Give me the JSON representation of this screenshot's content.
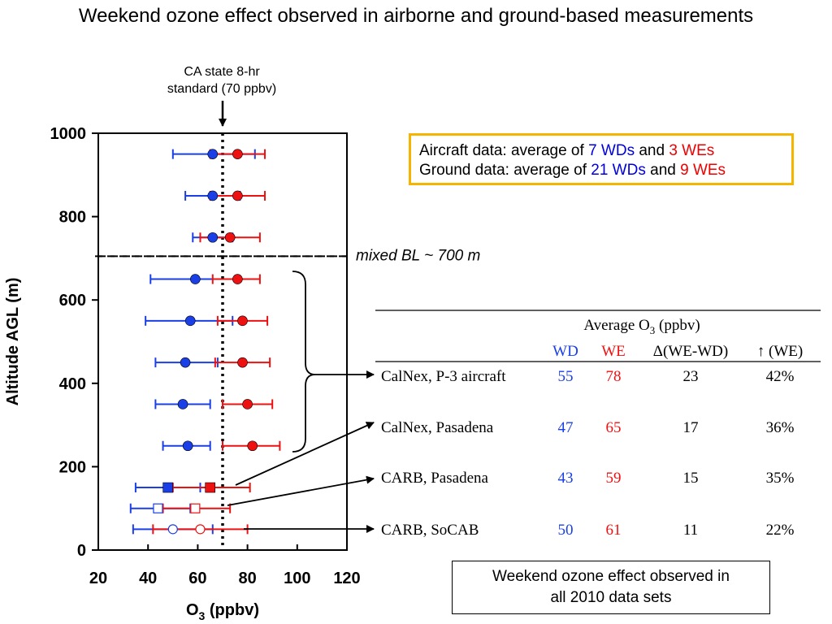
{
  "title": "Weekend ozone effect observed in airborne and ground-based measurements",
  "standard_note": [
    "CA state 8-hr",
    "standard (70 ppbv)"
  ],
  "mixed_bl_label": "mixed BL ~ 700 m",
  "aircraft_box": {
    "line1_prefix": "Aircraft data: average of ",
    "line1_wd": "7 WDs",
    "line1_and": " and ",
    "line1_we": "3 WEs",
    "line2_prefix": "Ground data: average of ",
    "line2_wd": "21 WDs",
    "line2_and": " and ",
    "line2_we": "9 WEs"
  },
  "bottom_box": [
    "Weekend ozone effect observed in",
    "all 2010 data sets"
  ],
  "table": {
    "group_header": "Average O",
    "group_header_sub": "3",
    "group_header_unit": " (ppbv)",
    "columns": [
      "WD",
      "WE",
      "Δ(WE-WD)",
      "↑ (WE)"
    ],
    "rows": [
      {
        "label": "CalNex, P-3 aircraft",
        "wd": "55",
        "we": "78",
        "delta": "23",
        "pct": "42%"
      },
      {
        "label": "CalNex, Pasadena",
        "wd": "47",
        "we": "65",
        "delta": "17",
        "pct": "36%"
      },
      {
        "label": "CARB, Pasadena",
        "wd": "43",
        "we": "59",
        "delta": "15",
        "pct": "35%"
      },
      {
        "label": "CARB, SoCAB",
        "wd": "50",
        "we": "61",
        "delta": "11",
        "pct": "22%"
      }
    ]
  },
  "chart_data": {
    "type": "scatter",
    "xlabel": "O",
    "xlabel_sub": "3",
    "xlabel_unit": " (ppbv)",
    "ylabel": "Altitude AGL (m)",
    "xlim": [
      20,
      120
    ],
    "ylim": [
      0,
      1000
    ],
    "xticks": [
      20,
      40,
      60,
      80,
      100,
      120
    ],
    "yticks": [
      0,
      200,
      400,
      600,
      800,
      1000
    ],
    "standard_x": 70,
    "mixed_bl_y": 705,
    "colors": {
      "wd": "#1a3fe6",
      "we": "#ee1111"
    },
    "aircraft_profile": [
      {
        "alt": 950,
        "wd": 66,
        "wd_lo": 50,
        "wd_hi": 83,
        "we": 76,
        "we_lo": 65,
        "we_hi": 87
      },
      {
        "alt": 850,
        "wd": 66,
        "wd_lo": 55,
        "wd_hi": 77,
        "we": 76,
        "we_lo": 65,
        "we_hi": 87
      },
      {
        "alt": 750,
        "wd": 66,
        "wd_lo": 58,
        "wd_hi": 74,
        "we": 73,
        "we_lo": 61,
        "we_hi": 85
      },
      {
        "alt": 650,
        "wd": 59,
        "wd_lo": 41,
        "wd_hi": 76,
        "we": 76,
        "we_lo": 66,
        "we_hi": 85
      },
      {
        "alt": 550,
        "wd": 57,
        "wd_lo": 39,
        "wd_hi": 74,
        "we": 78,
        "we_lo": 68,
        "we_hi": 88
      },
      {
        "alt": 450,
        "wd": 55,
        "wd_lo": 43,
        "wd_hi": 68,
        "we": 78,
        "we_lo": 67,
        "we_hi": 89
      },
      {
        "alt": 350,
        "wd": 54,
        "wd_lo": 43,
        "wd_hi": 65,
        "we": 80,
        "we_lo": 70,
        "we_hi": 90
      },
      {
        "alt": 250,
        "wd": 56,
        "wd_lo": 46,
        "wd_hi": 65,
        "we": 82,
        "we_lo": 70,
        "we_hi": 93
      }
    ],
    "ground_sites": [
      {
        "name": "CalNex, Pasadena",
        "alt": 150,
        "marker": "square-filled",
        "wd": 48,
        "wd_lo": 35,
        "wd_hi": 61,
        "we": 65,
        "we_lo": 50,
        "we_hi": 81
      },
      {
        "name": "CARB, Pasadena",
        "alt": 100,
        "marker": "square-open",
        "wd": 44,
        "wd_lo": 33,
        "wd_hi": 57,
        "we": 59,
        "we_lo": 46,
        "we_hi": 73
      },
      {
        "name": "CARB, SoCAB",
        "alt": 50,
        "marker": "circle-open",
        "wd": 50,
        "wd_lo": 34,
        "wd_hi": 66,
        "we": 61,
        "we_lo": 42,
        "we_hi": 80
      }
    ]
  }
}
